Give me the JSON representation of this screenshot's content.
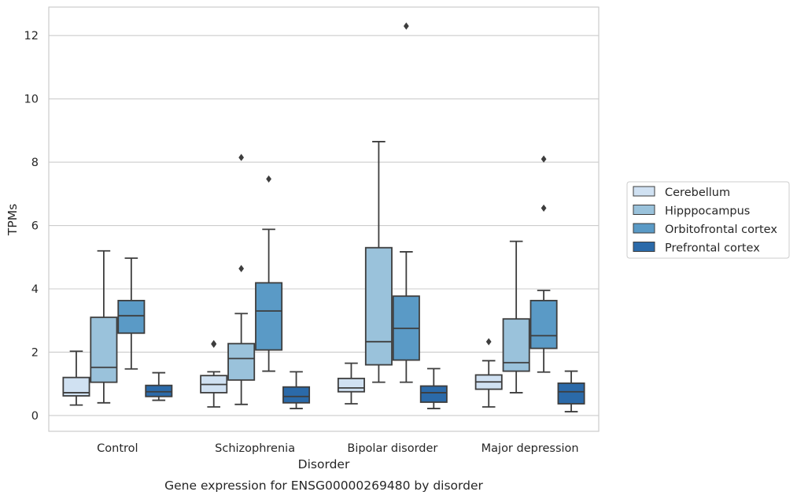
{
  "chart_data": {
    "type": "box",
    "caption": "Gene expression for ENSG00000269480 by disorder",
    "xlabel": "Disorder",
    "ylabel": "TPMs",
    "ylim": [
      -0.5,
      12.9
    ],
    "yticks": [
      0,
      2,
      4,
      6,
      8,
      10,
      12
    ],
    "grid": "horizontal",
    "legend_position": "right",
    "categories": [
      "Control",
      "Schizophrenia",
      "Bipolar disorder",
      "Major depression"
    ],
    "series": [
      {
        "name": "Cerebellum",
        "color": "#d0e1f2",
        "boxes": [
          {
            "whisker_low": 0.33,
            "q1": 0.62,
            "median": 0.72,
            "q3": 1.2,
            "whisker_high": 2.03,
            "outliers": []
          },
          {
            "whisker_low": 0.27,
            "q1": 0.72,
            "median": 0.98,
            "q3": 1.26,
            "whisker_high": 1.38,
            "outliers": [
              2.25,
              2.27
            ]
          },
          {
            "whisker_low": 0.37,
            "q1": 0.75,
            "median": 0.87,
            "q3": 1.17,
            "whisker_high": 1.65,
            "outliers": []
          },
          {
            "whisker_low": 0.27,
            "q1": 0.83,
            "median": 1.06,
            "q3": 1.28,
            "whisker_high": 1.73,
            "outliers": [
              2.33
            ]
          }
        ]
      },
      {
        "name": "Hipppocampus",
        "color": "#9ac2db",
        "boxes": [
          {
            "whisker_low": 0.4,
            "q1": 1.05,
            "median": 1.52,
            "q3": 3.1,
            "whisker_high": 5.2,
            "outliers": []
          },
          {
            "whisker_low": 0.35,
            "q1": 1.12,
            "median": 1.8,
            "q3": 2.27,
            "whisker_high": 3.22,
            "outliers": [
              4.64,
              8.15
            ]
          },
          {
            "whisker_low": 1.05,
            "q1": 1.6,
            "median": 2.33,
            "q3": 5.3,
            "whisker_high": 8.65,
            "outliers": []
          },
          {
            "whisker_low": 0.72,
            "q1": 1.4,
            "median": 1.67,
            "q3": 3.05,
            "whisker_high": 5.5,
            "outliers": []
          }
        ]
      },
      {
        "name": "Orbitofrontal cortex",
        "color": "#5a9ac6",
        "boxes": [
          {
            "whisker_low": 1.47,
            "q1": 2.6,
            "median": 3.15,
            "q3": 3.63,
            "whisker_high": 4.97,
            "outliers": []
          },
          {
            "whisker_low": 1.4,
            "q1": 2.07,
            "median": 3.3,
            "q3": 4.19,
            "whisker_high": 5.88,
            "outliers": [
              7.47
            ]
          },
          {
            "whisker_low": 1.05,
            "q1": 1.75,
            "median": 2.75,
            "q3": 3.77,
            "whisker_high": 5.17,
            "outliers": [
              12.3
            ]
          },
          {
            "whisker_low": 1.37,
            "q1": 2.12,
            "median": 2.52,
            "q3": 3.63,
            "whisker_high": 3.95,
            "outliers": [
              6.55,
              8.1
            ]
          }
        ]
      },
      {
        "name": "Prefrontal cortex",
        "color": "#2b6aa9",
        "boxes": [
          {
            "whisker_low": 0.48,
            "q1": 0.6,
            "median": 0.75,
            "q3": 0.95,
            "whisker_high": 1.35,
            "outliers": []
          },
          {
            "whisker_low": 0.22,
            "q1": 0.4,
            "median": 0.6,
            "q3": 0.9,
            "whisker_high": 1.38,
            "outliers": []
          },
          {
            "whisker_low": 0.22,
            "q1": 0.42,
            "median": 0.72,
            "q3": 0.93,
            "whisker_high": 1.48,
            "outliers": []
          },
          {
            "whisker_low": 0.12,
            "q1": 0.37,
            "median": 0.75,
            "q3": 1.02,
            "whisker_high": 1.4,
            "outliers": []
          }
        ]
      }
    ]
  }
}
